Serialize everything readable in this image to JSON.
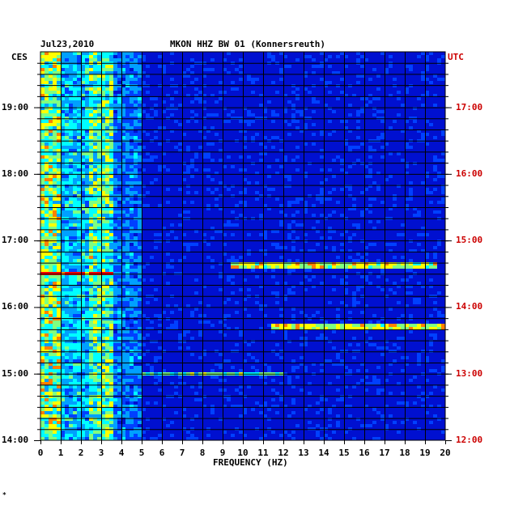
{
  "header": {
    "date": "Jul23,2010",
    "station": "MKON HHZ BW 01 (Konnersreuth)",
    "left_tz": "CES",
    "right_tz": "UTC"
  },
  "footer_mark": "*",
  "chart_data": {
    "type": "heatmap",
    "title": "MKON HHZ BW 01 (Konnersreuth)",
    "xlabel": "FREQUENCY (HZ)",
    "xlim": [
      0,
      20
    ],
    "x_ticks": [
      "0",
      "1",
      "2",
      "3",
      "4",
      "5",
      "6",
      "7",
      "8",
      "9",
      "10",
      "11",
      "12",
      "13",
      "14",
      "15",
      "16",
      "17",
      "18",
      "19",
      "20"
    ],
    "left_time_labels": [
      "19:00",
      "18:00",
      "17:00",
      "16:00",
      "15:00",
      "14:00"
    ],
    "right_time_labels": [
      "17:00",
      "16:00",
      "15:00",
      "14:00",
      "13:00",
      "12:00"
    ],
    "left_ylim": [
      "14:00",
      "19:50"
    ],
    "right_ylim": [
      "12:00",
      "17:50"
    ],
    "colormap": [
      "#0000a0",
      "#0010d0",
      "#0040ff",
      "#00a0ff",
      "#00ffff",
      "#80ff80",
      "#ffff00",
      "#ff8000",
      "#ff0000"
    ],
    "grid": true,
    "notable_bands": [
      {
        "time": "16:37",
        "from_hz": 9.5,
        "to_hz": 19.5,
        "level": "high"
      },
      {
        "time": "15:42",
        "from_hz": 11.5,
        "to_hz": 20,
        "level": "high"
      },
      {
        "time": "16:30",
        "from_hz": 0,
        "to_hz": 3.5,
        "level": "high"
      },
      {
        "time": "14:59",
        "from_hz": 5,
        "to_hz": 12,
        "level": "medium"
      }
    ]
  }
}
